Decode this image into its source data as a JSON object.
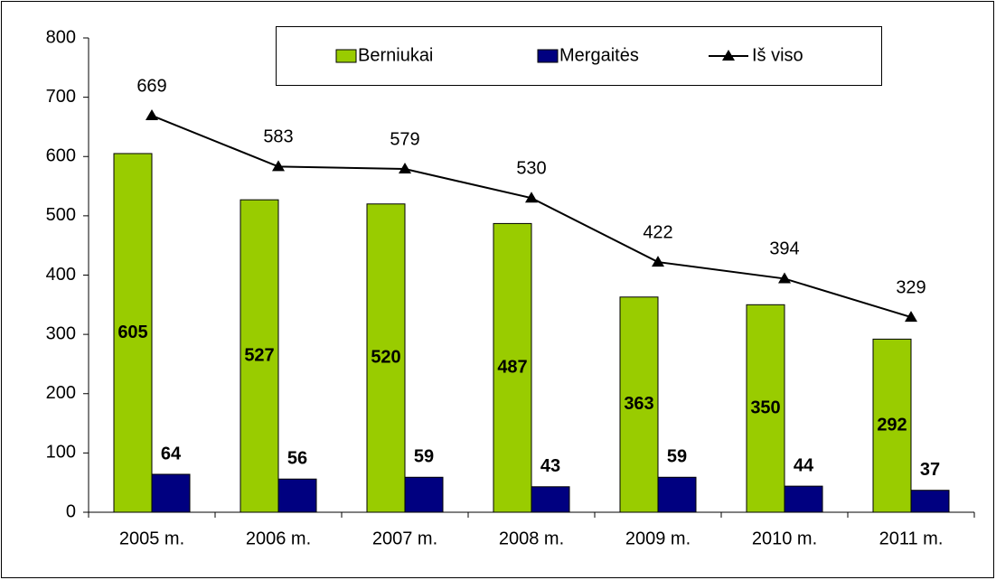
{
  "chart_data": {
    "type": "bar",
    "categories": [
      "2005 m.",
      "2006 m.",
      "2007 m.",
      "2008 m.",
      "2009 m.",
      "2010 m.",
      "2011 m."
    ],
    "series": [
      {
        "name": "Berniukai",
        "color": "#99cc00",
        "values": [
          605,
          527,
          520,
          487,
          363,
          350,
          292
        ]
      },
      {
        "name": "Mergaitės",
        "color": "#000080",
        "values": [
          64,
          56,
          59,
          43,
          59,
          44,
          37
        ]
      },
      {
        "name": "Iš viso",
        "type": "line",
        "color": "#000000",
        "values": [
          669,
          583,
          579,
          530,
          422,
          394,
          329
        ]
      }
    ],
    "ylim": [
      0,
      800
    ],
    "yticks": [
      0,
      100,
      200,
      300,
      400,
      500,
      600,
      700,
      800
    ],
    "grid": false,
    "legend": "top"
  }
}
